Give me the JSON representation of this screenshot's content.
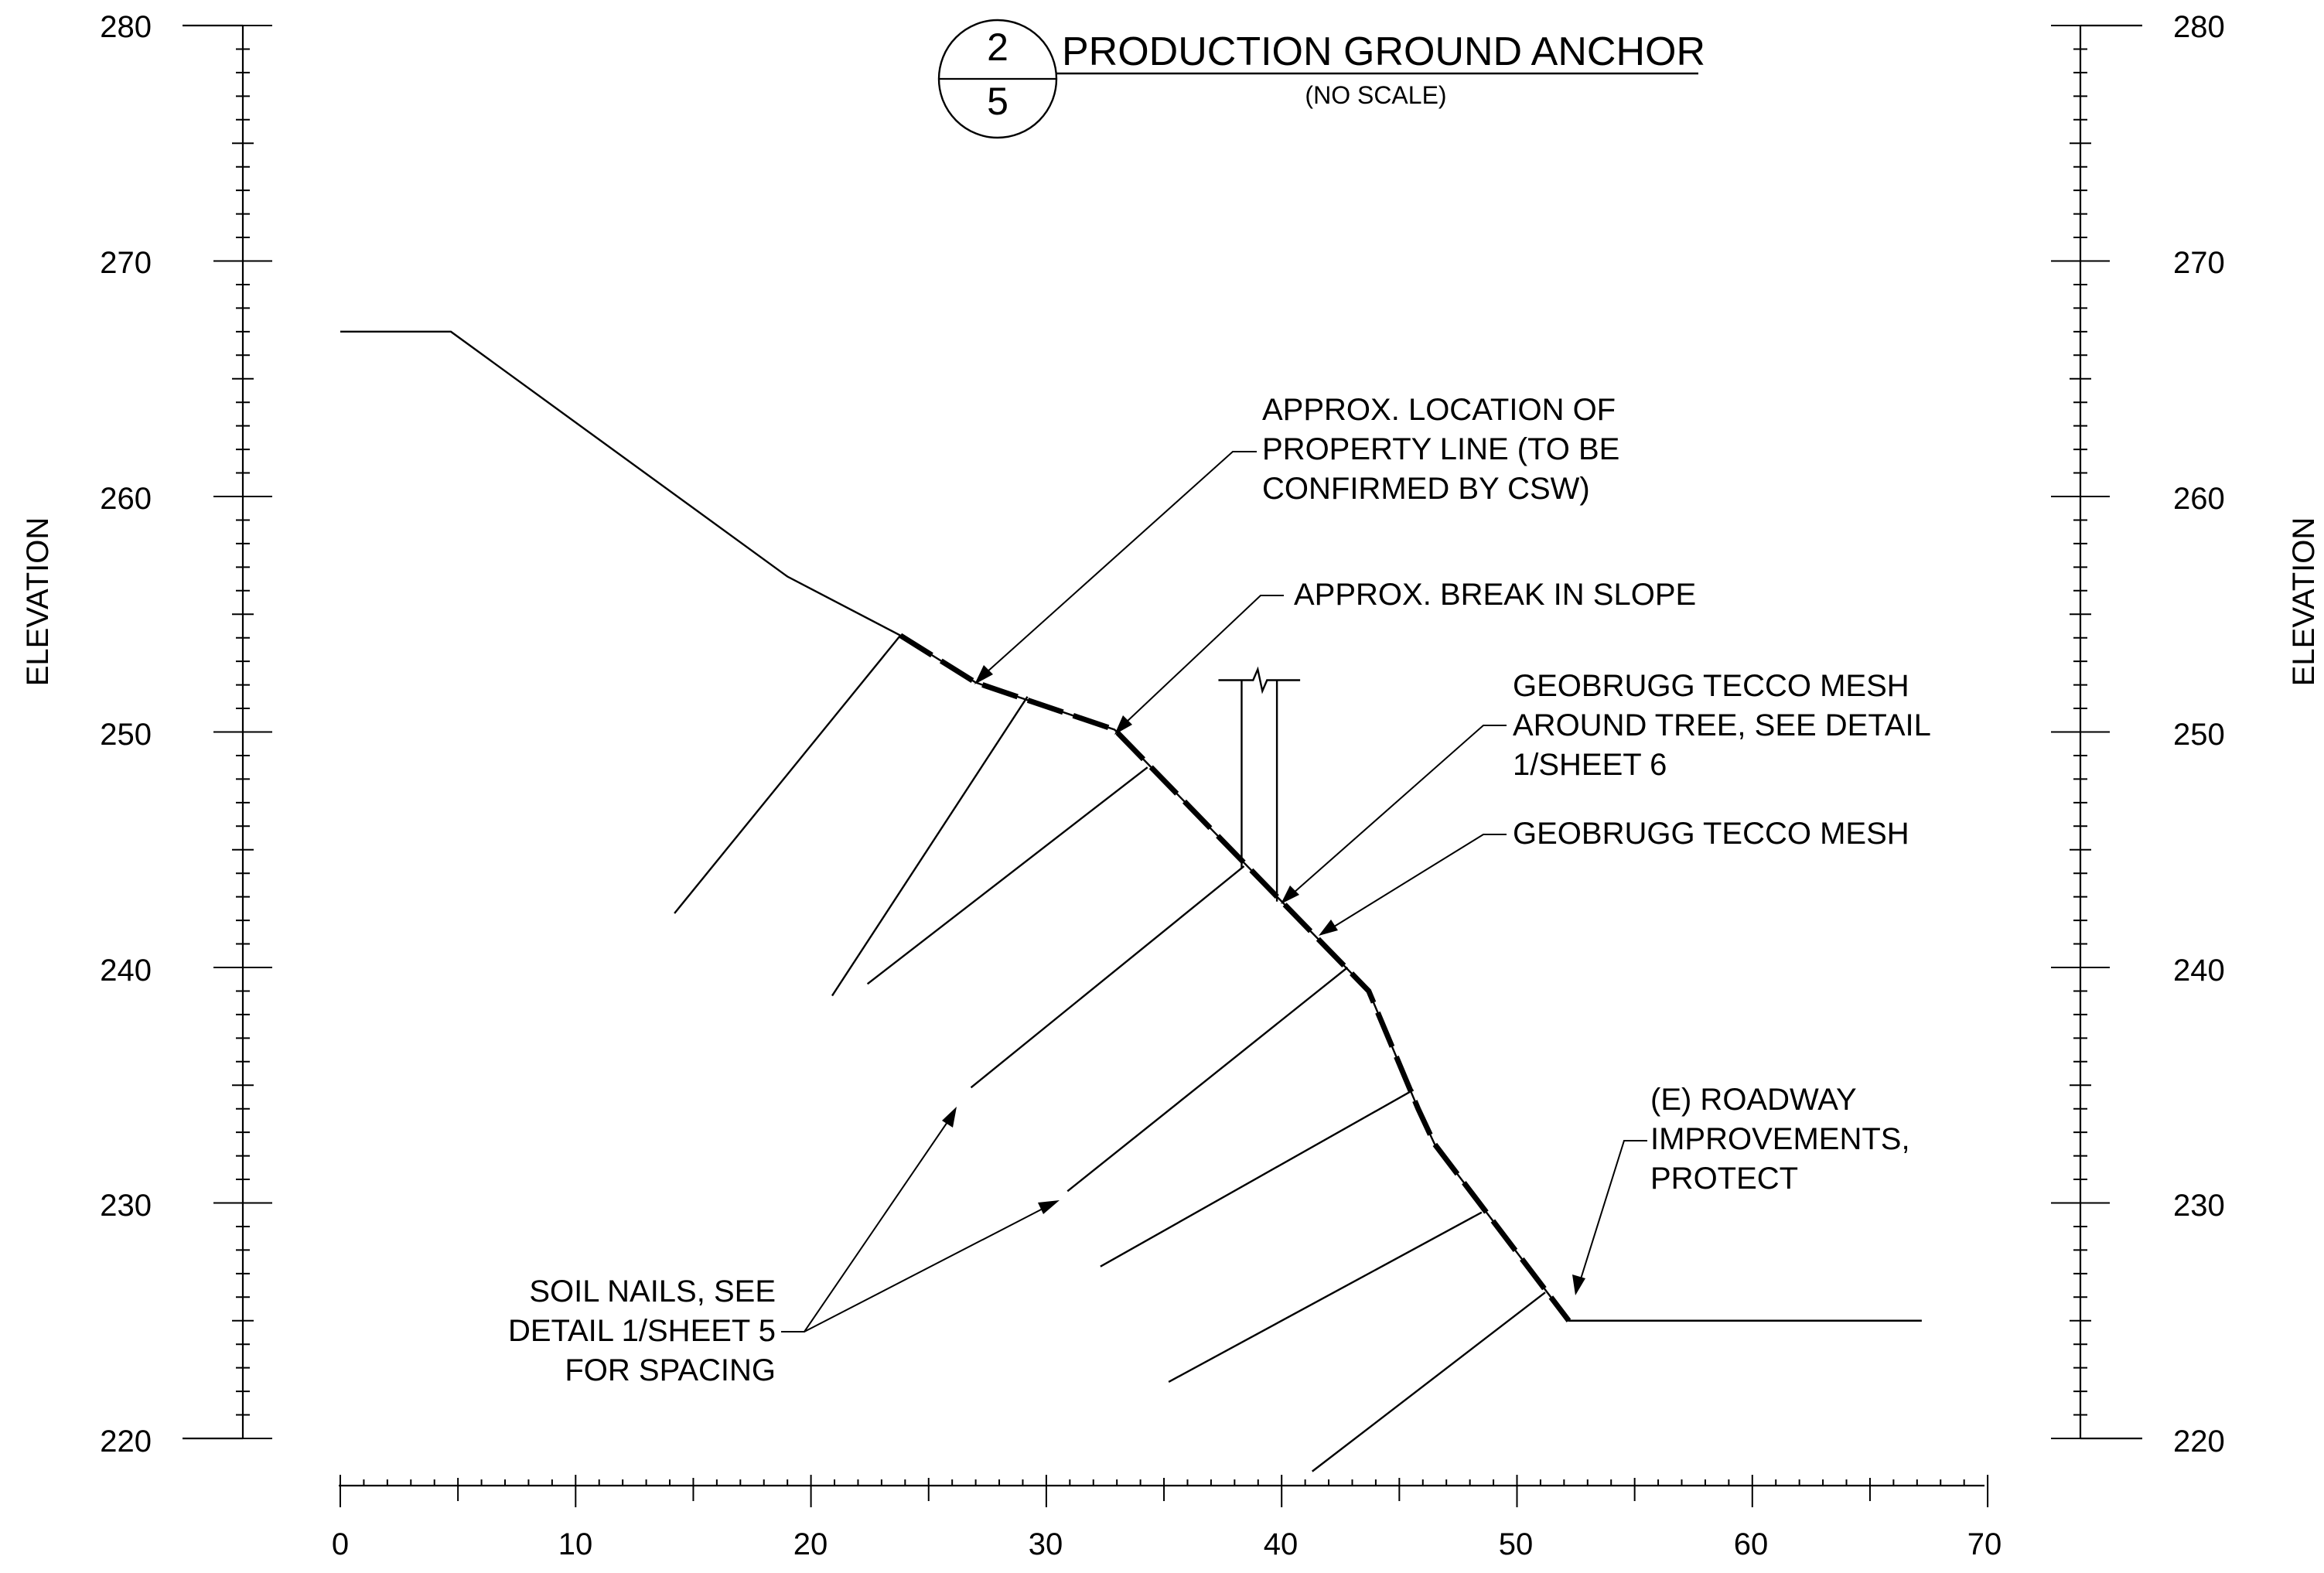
{
  "title": {
    "detail_number": "2",
    "sheet_number": "5",
    "name": "PRODUCTION GROUND ANCHOR",
    "scale_note": "(NO SCALE)"
  },
  "axes": {
    "y_label_left": "ELEVATION",
    "y_label_right": "ELEVATION",
    "y_ticks": [
      "280",
      "270",
      "260",
      "250",
      "240",
      "230",
      "220"
    ],
    "x_ticks": [
      "0",
      "10",
      "20",
      "30",
      "40",
      "50",
      "60",
      "70"
    ]
  },
  "callouts": {
    "property_line": [
      "APPROX. LOCATION OF",
      "PROPERTY LINE (TO BE",
      "CONFIRMED BY CSW)"
    ],
    "break_in_slope": [
      "APPROX. BREAK IN SLOPE"
    ],
    "mesh_tree": [
      "GEOBRUGG TECCO MESH",
      "AROUND TREE, SEE DETAIL",
      "1/SHEET 6"
    ],
    "mesh": [
      "GEOBRUGG TECCO MESH"
    ],
    "roadway": [
      "(E) ROADWAY",
      "IMPROVEMENTS,",
      "PROTECT"
    ],
    "soil_nails": [
      "SOIL NAILS, SEE",
      "DETAIL 1/SHEET 5",
      "FOR SPACING"
    ]
  },
  "chart_data": {
    "type": "diagram",
    "x_range": [
      0,
      70
    ],
    "y_range": [
      220,
      280
    ],
    "ground_profile": [
      [
        0,
        267
      ],
      [
        4.7,
        267
      ],
      [
        19,
        256.6
      ],
      [
        23.8,
        254.1
      ],
      [
        27,
        252.1
      ],
      [
        32.9,
        250.1
      ],
      [
        43.7,
        239
      ],
      [
        45.8,
        234
      ],
      [
        46.5,
        232.5
      ],
      [
        52.2,
        225
      ],
      [
        67.2,
        225
      ]
    ],
    "mesh_start_x": 23.8,
    "soil_nails": [
      [
        [
          23.8,
          254.1
        ],
        [
          14.2,
          242.3
        ]
      ],
      [
        [
          29.2,
          251.5
        ],
        [
          20.9,
          238.8
        ]
      ],
      [
        [
          34.3,
          248.5
        ],
        [
          22.4,
          239.3
        ]
      ],
      [
        [
          38.4,
          244.3
        ],
        [
          26.8,
          234.9
        ]
      ],
      [
        [
          42.8,
          240
        ],
        [
          30.9,
          230.5
        ]
      ],
      [
        [
          45.6,
          234.8
        ],
        [
          32.3,
          227.3
        ]
      ],
      [
        [
          48.5,
          229.6
        ],
        [
          35.2,
          222.4
        ]
      ],
      [
        [
          51.2,
          226.2
        ],
        [
          41.3,
          218.6
        ]
      ]
    ],
    "tree": {
      "x_left": 38.3,
      "x_right": 39.8,
      "top": 252.2,
      "bottom_left": 244.2,
      "bottom_right": 242.8
    }
  }
}
